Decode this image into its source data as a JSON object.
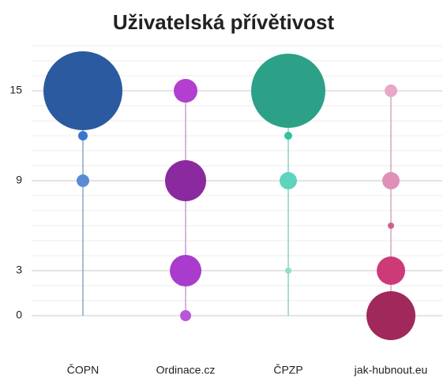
{
  "chart_data": {
    "type": "bubble",
    "title": "Uživatelská přívětivost",
    "ylim": [
      -2,
      18
    ],
    "yticks": [
      0,
      3,
      9,
      15
    ],
    "grid": true,
    "minor_grid": true,
    "columns": [
      {
        "category": "ČOPN",
        "stem_color": "#8aa5c8",
        "values": [
          15,
          12,
          9
        ],
        "sizes": [
          50,
          6,
          8
        ],
        "colors": [
          "#2b5aa0",
          "#3a77cc",
          "#5b8bd5"
        ]
      },
      {
        "category": "Ordinace.cz",
        "stem_color": "#c79bd6",
        "values": [
          15,
          9,
          3,
          0
        ],
        "sizes": [
          15,
          26,
          20,
          7
        ],
        "colors": [
          "#b23fd0",
          "#8a2a9e",
          "#a93ccc",
          "#b858d8"
        ]
      },
      {
        "category": "ČPZP",
        "stem_color": "#8fd0c0",
        "values": [
          15,
          12,
          9,
          3
        ],
        "sizes": [
          47,
          5,
          11,
          4
        ],
        "colors": [
          "#2ca187",
          "#2fc39e",
          "#5fd4bc",
          "#8ee0cc"
        ]
      },
      {
        "category": "jak-hubnout.eu",
        "stem_color": "#cfaabd",
        "values": [
          15,
          9,
          6,
          3,
          0
        ],
        "sizes": [
          8,
          11,
          4,
          18,
          31
        ],
        "colors": [
          "#e8a8c8",
          "#e090b8",
          "#d0608f",
          "#cc3b78",
          "#a0285a"
        ]
      }
    ]
  }
}
